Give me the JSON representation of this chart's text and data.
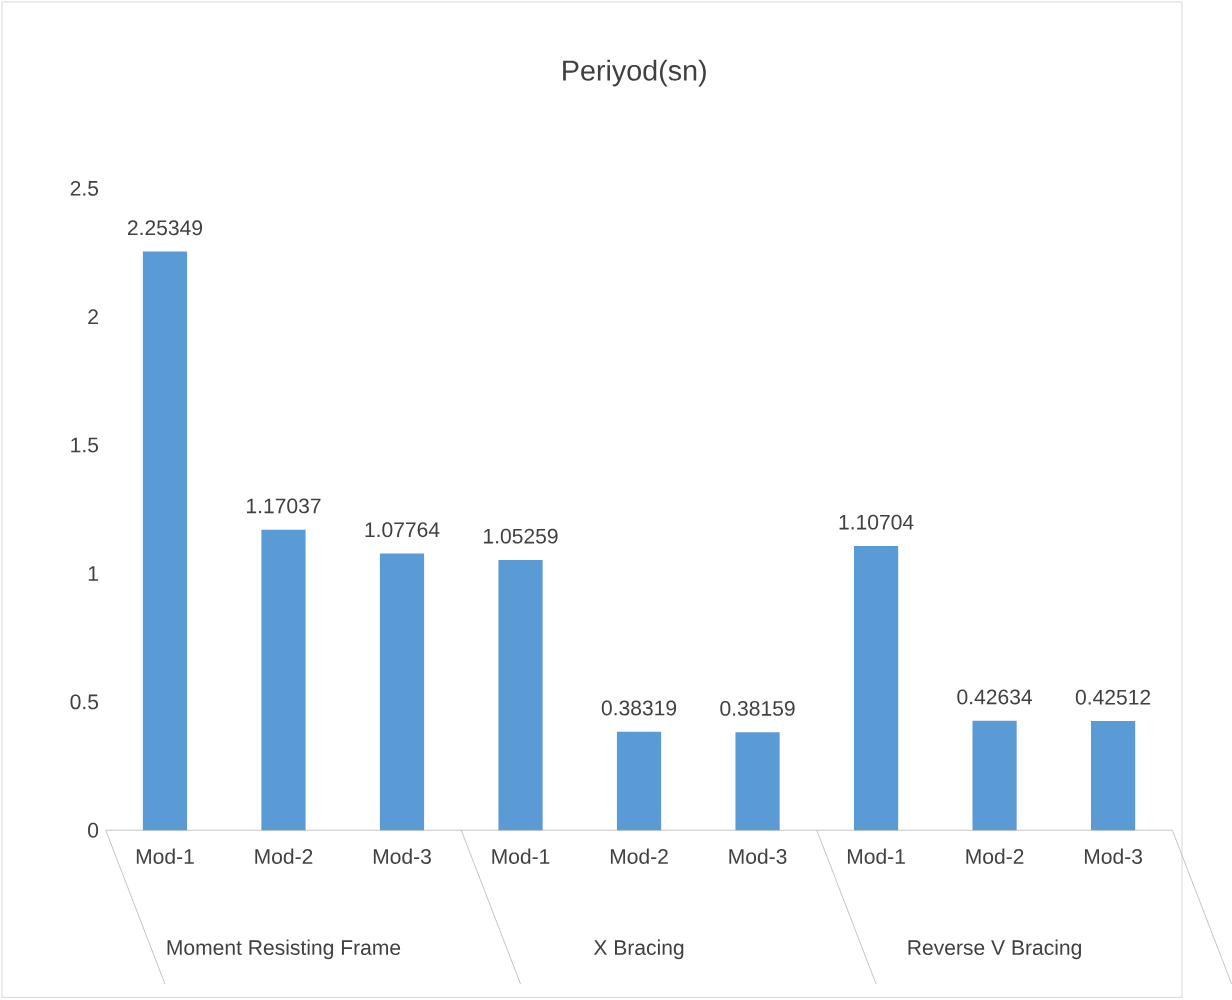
{
  "chart_data": {
    "type": "bar",
    "title": "Periyod(sn)",
    "categories": [
      "Mod-1",
      "Mod-2",
      "Mod-3",
      "Mod-1",
      "Mod-2",
      "Mod-3",
      "Mod-1",
      "Mod-2",
      "Mod-3"
    ],
    "values": [
      2.25349,
      1.17037,
      1.07764,
      1.05259,
      0.38319,
      0.38159,
      1.10704,
      0.42634,
      0.42512
    ],
    "color": "#5b9bd5",
    "ylim": [
      0,
      2.5
    ],
    "yticks": [
      0,
      {
        "value": 0.5,
        "label": "0.5"
      },
      1,
      {
        "value": 1.5,
        "label": "1.5"
      },
      2,
      {
        "value": 2.5,
        "label": "2.5"
      }
    ],
    "data_labels": true,
    "grid": false,
    "annotations": [
      "Moment Resisting Frame",
      "X Bracing",
      "Reverse V Bracing"
    ]
  }
}
